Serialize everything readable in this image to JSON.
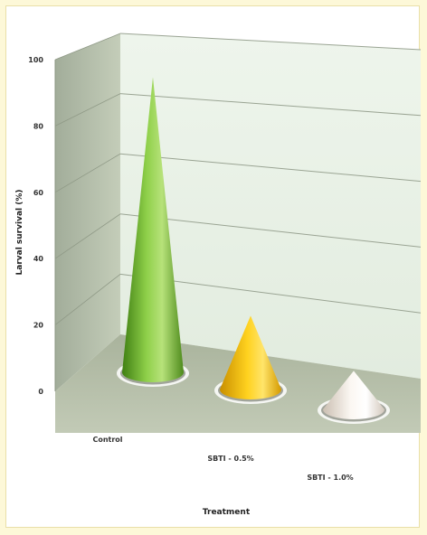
{
  "chart_data": {
    "type": "bar",
    "style": "3d-cone",
    "categories": [
      "Control",
      "SBTI - 0.5%",
      "SBTI - 1.0%"
    ],
    "values": [
      92,
      23,
      12
    ],
    "colors": [
      "#7cbf3c",
      "#f6c000",
      "#f3ece4"
    ],
    "xlabel": "Treatment",
    "ylabel": "Larval survival (%)",
    "yticks": [
      0,
      20,
      40,
      60,
      80,
      100
    ],
    "ylim": [
      0,
      100
    ],
    "grid": true,
    "wall_color": "#e9f2e6",
    "floor_color": "#b5bfa9"
  }
}
